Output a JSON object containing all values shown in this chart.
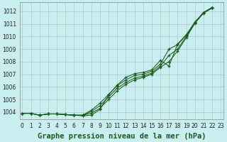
{
  "xlabel": "Graphe pression niveau de la mer (hPa)",
  "bg_color": "#c8eef0",
  "grid_color": "#b0c8c8",
  "line_color": "#1a5c1a",
  "x_ticks": [
    0,
    1,
    2,
    3,
    4,
    5,
    6,
    7,
    8,
    9,
    10,
    11,
    12,
    13,
    14,
    15,
    16,
    17,
    18,
    19,
    20,
    21,
    22,
    23
  ],
  "y_ticks": [
    1004,
    1005,
    1006,
    1007,
    1008,
    1009,
    1010,
    1011,
    1012
  ],
  "xlim": [
    -0.3,
    23.3
  ],
  "ylim": [
    1003.4,
    1012.7
  ],
  "line1": [
    1003.9,
    1003.9,
    1003.75,
    1003.85,
    1003.85,
    1003.8,
    1003.75,
    1003.75,
    1003.9,
    1004.3,
    1005.0,
    1005.7,
    1006.2,
    1006.55,
    1006.75,
    1007.0,
    1007.55,
    1008.0,
    1008.85,
    1009.9,
    1011.05,
    1011.85,
    1012.25
  ],
  "line2": [
    1003.9,
    1003.9,
    1003.75,
    1003.85,
    1003.85,
    1003.8,
    1003.75,
    1003.75,
    1004.05,
    1004.5,
    1005.2,
    1005.9,
    1006.35,
    1006.7,
    1006.85,
    1007.1,
    1007.65,
    1008.5,
    1009.0,
    1010.0,
    1011.1,
    1011.9,
    1012.3
  ],
  "line3": [
    1003.9,
    1003.9,
    1003.75,
    1003.85,
    1003.85,
    1003.8,
    1003.75,
    1003.75,
    1004.15,
    1004.7,
    1005.4,
    1006.1,
    1006.55,
    1006.9,
    1007.0,
    1007.25,
    1007.8,
    1009.0,
    1009.35,
    1010.1,
    1011.15,
    1011.9,
    1012.3
  ],
  "line4_x": [
    0,
    1,
    2,
    3,
    4,
    5,
    6,
    7,
    8,
    9,
    10,
    11,
    12,
    13,
    14,
    15,
    16,
    17,
    18,
    19,
    20,
    21,
    22
  ],
  "line4": [
    1003.9,
    1003.9,
    1003.75,
    1003.85,
    1003.85,
    1003.8,
    1003.75,
    1003.7,
    1003.75,
    1004.2,
    1005.35,
    1006.15,
    1006.75,
    1007.05,
    1007.15,
    1007.35,
    1008.1,
    1007.65,
    1009.4,
    1010.15,
    1011.1,
    1011.9,
    1012.3
  ],
  "xlabel_fontsize": 7.5,
  "tick_fontsize": 5.5
}
